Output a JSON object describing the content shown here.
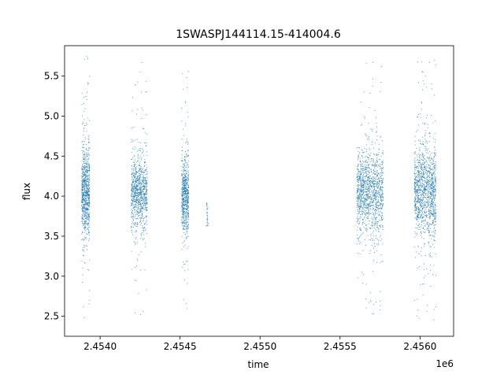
{
  "chart_data": {
    "type": "scatter",
    "title": "1SWASPJ144114.15-414004.6",
    "xlabel": "time",
    "ylabel": "flux",
    "x_offset_label": "1e6",
    "xlim": [
      2453778,
      2456210
    ],
    "ylim": [
      2.25,
      5.88
    ],
    "x_ticks": [
      2453750,
      2454000,
      2454250,
      2454500,
      2454750,
      2455000,
      2455250,
      2455500,
      2455750,
      2456000,
      2456250
    ],
    "x_tick_labels": [
      "2.4540",
      "2.4545",
      "2.4550",
      "2.4555",
      "2.4560"
    ],
    "x_tick_values": [
      2.454,
      2.4545,
      2.455,
      2.4555,
      2.456
    ],
    "y_tick_values": [
      2.5,
      3.0,
      3.5,
      4.0,
      4.5,
      5.0,
      5.5
    ],
    "y_tick_labels": [
      "2.5",
      "3.0",
      "3.5",
      "4.0",
      "4.5",
      "5.0",
      "5.5"
    ],
    "grid": false,
    "marker_color": "#1f77b4",
    "series": [
      {
        "clusters": [
          {
            "x_start": 2453885,
            "x_end": 2453935,
            "y_center": 4.05,
            "y_core_spread": 0.28,
            "y_min": 2.45,
            "y_max": 5.75,
            "density": 0.9
          },
          {
            "x_start": 2454195,
            "x_end": 2454295,
            "y_center": 4.05,
            "y_core_spread": 0.22,
            "y_min": 2.5,
            "y_max": 5.67,
            "density": 1.0
          },
          {
            "x_start": 2454510,
            "x_end": 2454555,
            "y_center": 4.0,
            "y_core_spread": 0.22,
            "y_min": 2.55,
            "y_max": 5.6,
            "density": 0.7
          },
          {
            "x_start": 2454665,
            "x_end": 2454675,
            "y_center": 3.8,
            "y_core_spread": 0.1,
            "y_min": 3.62,
            "y_max": 3.92,
            "density": 0.02
          },
          {
            "x_start": 2455605,
            "x_end": 2455770,
            "y_center": 4.05,
            "y_core_spread": 0.25,
            "y_min": 2.52,
            "y_max": 5.67,
            "density": 1.4
          },
          {
            "x_start": 2455965,
            "x_end": 2456100,
            "y_center": 4.05,
            "y_core_spread": 0.27,
            "y_min": 2.42,
            "y_max": 5.7,
            "density": 1.4
          }
        ]
      }
    ]
  }
}
